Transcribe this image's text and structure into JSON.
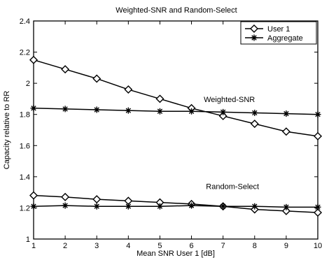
{
  "chart_data": {
    "type": "line",
    "title": "Weighted-SNR and Random-Select",
    "xlabel": "Mean SNR User 1 [dB]",
    "ylabel": "Capacity relative to RR",
    "xlim": [
      1,
      10
    ],
    "ylim": [
      1,
      2.4
    ],
    "xticks": [
      "1",
      "2",
      "3",
      "4",
      "5",
      "6",
      "7",
      "8",
      "9",
      "10"
    ],
    "yticks": [
      "1",
      "1.2",
      "1.4",
      "1.6",
      "1.8",
      "2",
      "2.2",
      "2.4"
    ],
    "grid": false,
    "legend_position": "top-right",
    "legend": [
      {
        "label": "User 1",
        "marker": "diamond"
      },
      {
        "label": "Aggregate",
        "marker": "star"
      }
    ],
    "annotations": [
      {
        "text": "Weighted-SNR",
        "x": 7.2,
        "y": 1.88
      },
      {
        "text": "Random-Select",
        "x": 7.3,
        "y": 1.32
      }
    ],
    "x": [
      1,
      2,
      3,
      4,
      5,
      6,
      7,
      8,
      9,
      10
    ],
    "series": [
      {
        "group": "Weighted-SNR",
        "marker": "diamond",
        "values": [
          2.15,
          2.09,
          2.03,
          1.96,
          1.9,
          1.84,
          1.79,
          1.74,
          1.69,
          1.66
        ]
      },
      {
        "group": "Weighted-SNR",
        "marker": "star",
        "values": [
          1.84,
          1.835,
          1.83,
          1.825,
          1.82,
          1.82,
          1.815,
          1.81,
          1.805,
          1.8
        ]
      },
      {
        "group": "Random-Select",
        "marker": "diamond",
        "values": [
          1.28,
          1.27,
          1.255,
          1.245,
          1.235,
          1.225,
          1.21,
          1.19,
          1.18,
          1.17
        ]
      },
      {
        "group": "Random-Select",
        "marker": "star",
        "values": [
          1.21,
          1.215,
          1.21,
          1.21,
          1.21,
          1.215,
          1.21,
          1.21,
          1.205,
          1.205
        ]
      }
    ]
  }
}
